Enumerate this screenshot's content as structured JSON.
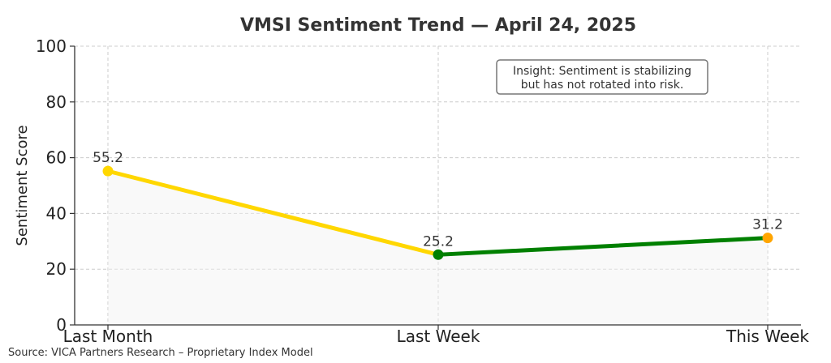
{
  "chart_data": {
    "type": "line",
    "title": "VMSI Sentiment Trend — April 24, 2025",
    "xlabel": "",
    "ylabel": "Sentiment Score",
    "categories": [
      "Last Month",
      "Last Week",
      "This Week"
    ],
    "ylim": [
      0,
      100
    ],
    "yticks": [
      0,
      20,
      40,
      60,
      80,
      100
    ],
    "grid": true,
    "series": [
      {
        "values": [
          55.2,
          25.2,
          31.2
        ],
        "data_labels": [
          "55.2",
          "25.2",
          "31.2"
        ],
        "segment_colors": [
          "#FFD700",
          "#008000"
        ],
        "point_colors": [
          "#FFD700",
          "#008000",
          "#FFA500"
        ]
      }
    ],
    "annotation": {
      "lines": [
        "Insight: Sentiment is stabilizing",
        "but has not rotated into risk."
      ],
      "placement": "top-right"
    }
  },
  "footer": {
    "source": "Source: VICA Partners Research – Proprietary Index Model"
  }
}
